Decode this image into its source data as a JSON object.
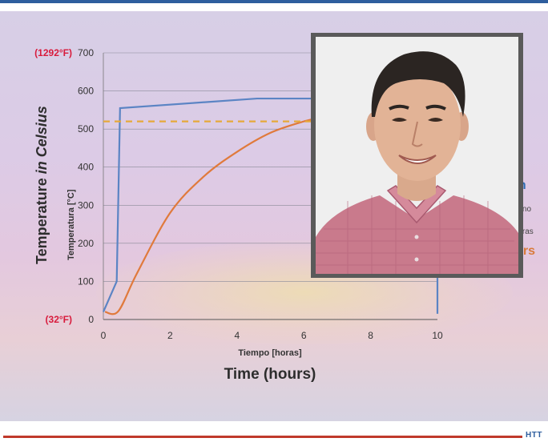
{
  "chart_data": {
    "type": "line",
    "ylabel": "Temperature in Celsius",
    "ylabel_emphasis": "in Celsius",
    "ylabel_secondary": "Temperatura [°C]",
    "xlabel": "Time (hours)",
    "xlabel_secondary": "Tiempo [horas]",
    "xlim": [
      0,
      10
    ],
    "ylim": [
      0,
      700
    ],
    "xticks": [
      0,
      2,
      4,
      6,
      8,
      10
    ],
    "yticks": [
      0,
      100,
      200,
      300,
      400,
      500,
      600,
      700
    ],
    "y_fahrenheit_labels": [
      {
        "y": 700,
        "label": "(1292°F)"
      },
      {
        "y": 0,
        "label": "(32°F)"
      }
    ],
    "grid": "horizontal",
    "series": [
      {
        "name": "",
        "color": "#5b84c4",
        "style": "solid",
        "x": [
          0,
          0.4,
          0.5,
          4.6,
          10,
          10
        ],
        "y": [
          20,
          100,
          555,
          580,
          580,
          15
        ]
      },
      {
        "name": "",
        "color": "#e07a3c",
        "style": "solid",
        "x": [
          0.05,
          0.45,
          1.0,
          2.0,
          3.0,
          4.0,
          5.0,
          6.0,
          6.5
        ],
        "y": [
          20,
          22,
          120,
          280,
          375,
          440,
          490,
          520,
          530
        ]
      },
      {
        "name": "",
        "color": "#e6a93a",
        "style": "dashed",
        "x": [
          0,
          10
        ],
        "y": [
          520,
          520
        ]
      }
    ],
    "legend_fragments": [
      {
        "text": "en",
        "color": "#2e6db4"
      },
      {
        "text": "orno",
        "color": "#444444"
      },
      {
        "text": "urras",
        "color": "#444444"
      },
      {
        "text": "ars",
        "color": "#d97a3a"
      }
    ]
  },
  "footer": {
    "logo": "HTT"
  }
}
